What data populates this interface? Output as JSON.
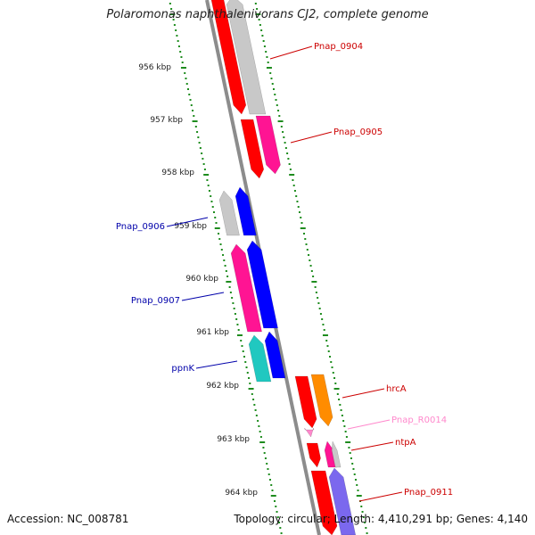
{
  "title": "Polaromonas naphthalenivorans CJ2, complete genome",
  "footer": {
    "accession": "Accession: NC_008781",
    "topology": "Topology: circular; Length: 4,410,291 bp; Genes: 4,140"
  },
  "axis": {
    "unit": "kbp",
    "ticks": [
      {
        "kbp": 956,
        "label": "956 kbp"
      },
      {
        "kbp": 957,
        "label": "957 kbp"
      },
      {
        "kbp": 958,
        "label": "958 kbp"
      },
      {
        "kbp": 959,
        "label": "959 kbp"
      },
      {
        "kbp": 960,
        "label": "960 kbp"
      },
      {
        "kbp": 961,
        "label": "961 kbp"
      },
      {
        "kbp": 962,
        "label": "962 kbp"
      },
      {
        "kbp": 963,
        "label": "963 kbp"
      },
      {
        "kbp": 964,
        "label": "964 kbp"
      }
    ]
  },
  "colors": {
    "backbone": "#8c8c8c",
    "tick": "#1e8c1e",
    "red": "#ff0000",
    "gray": "#c8c8c8",
    "pink": "#ff1493",
    "blue": "#0000ff",
    "cyan": "#20c8c0",
    "orange": "#ff8c00",
    "lavender": "#7b68ee",
    "label_red": "#cc0000",
    "label_blue": "#0000aa",
    "label_pink": "#ff88cc"
  },
  "labels": [
    {
      "text": "Pnap_0904",
      "color": "label_red"
    },
    {
      "text": "Pnap_0905",
      "color": "label_red"
    },
    {
      "text": "Pnap_0906",
      "color": "label_blue"
    },
    {
      "text": "Pnap_0907",
      "color": "label_blue"
    },
    {
      "text": "ppnK",
      "color": "label_blue"
    },
    {
      "text": "hrcA",
      "color": "label_red"
    },
    {
      "text": "Pnap_R0014",
      "color": "label_pink"
    },
    {
      "text": "ntpA",
      "color": "label_red"
    },
    {
      "text": "Pnap_0911",
      "color": "label_red"
    }
  ]
}
